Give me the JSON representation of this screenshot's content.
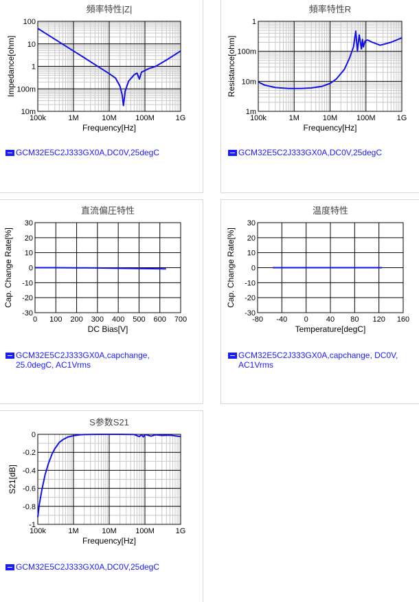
{
  "legend_color": "#1a1aff",
  "curve_color": "#1010e8",
  "chart_data": [
    {
      "id": "z",
      "type": "line",
      "title": "頻率特性|Z|",
      "xlabel": "Frequency[Hz]",
      "ylabel": "Impedance[ohm]",
      "xscale": "log",
      "yscale": "log",
      "xlim": [
        100000,
        1000000000
      ],
      "ylim": [
        0.01,
        100
      ],
      "xticks": [
        {
          "v": 100000,
          "label": "100k"
        },
        {
          "v": 1000000,
          "label": "1M"
        },
        {
          "v": 10000000,
          "label": "10M"
        },
        {
          "v": 100000000,
          "label": "100M"
        },
        {
          "v": 1000000000,
          "label": "1G"
        }
      ],
      "yticks": [
        {
          "v": 0.01,
          "label": "10m"
        },
        {
          "v": 0.1,
          "label": "100m"
        },
        {
          "v": 1,
          "label": "1"
        },
        {
          "v": 10,
          "label": "10"
        },
        {
          "v": 100,
          "label": "100"
        }
      ],
      "series": [
        {
          "x": [
            100000,
            200000,
            500000,
            1000000,
            2000000,
            5000000,
            10000000,
            15000000,
            20000000,
            23000000,
            25000000,
            28000000,
            35000000,
            50000000,
            60000000,
            70000000,
            80000000,
            100000000,
            130000000,
            200000000,
            400000000,
            1000000000
          ],
          "y": [
            48,
            24,
            9.6,
            4.8,
            2.4,
            0.95,
            0.47,
            0.3,
            0.13,
            0.055,
            0.018,
            0.08,
            0.22,
            0.42,
            0.5,
            0.27,
            0.55,
            0.65,
            0.8,
            1.0,
            1.9,
            4.8
          ]
        }
      ],
      "legend": "GCM32E5C2J333GX0A,DC0V,25degC"
    },
    {
      "id": "r",
      "type": "line",
      "title": "頻率特性R",
      "xlabel": "Frequency[Hz]",
      "ylabel": "Resistance[ohm]",
      "xscale": "log",
      "yscale": "log",
      "xlim": [
        100000,
        1000000000
      ],
      "ylim": [
        0.001,
        1
      ],
      "xticks": [
        {
          "v": 100000,
          "label": "100k"
        },
        {
          "v": 1000000,
          "label": "1M"
        },
        {
          "v": 10000000,
          "label": "10M"
        },
        {
          "v": 100000000,
          "label": "100M"
        },
        {
          "v": 1000000000,
          "label": "1G"
        }
      ],
      "yticks": [
        {
          "v": 0.001,
          "label": "1m"
        },
        {
          "v": 0.01,
          "label": "10m"
        },
        {
          "v": 0.1,
          "label": "100m"
        },
        {
          "v": 1,
          "label": "1"
        }
      ],
      "series": [
        {
          "x": [
            100000,
            150000,
            300000,
            700000,
            1500000,
            3000000,
            6000000,
            10000000,
            15000000,
            25000000,
            35000000,
            45000000,
            52000000,
            58000000,
            65000000,
            75000000,
            80000000,
            85000000,
            95000000,
            110000000,
            150000000,
            250000000,
            500000000,
            1000000000
          ],
          "y": [
            0.0095,
            0.0075,
            0.0062,
            0.0058,
            0.0058,
            0.006,
            0.0068,
            0.0085,
            0.012,
            0.025,
            0.06,
            0.14,
            0.47,
            0.1,
            0.35,
            0.12,
            0.25,
            0.14,
            0.22,
            0.24,
            0.2,
            0.16,
            0.2,
            0.28
          ]
        }
      ],
      "legend": "GCM32E5C2J333GX0A,DC0V,25degC"
    },
    {
      "id": "dc",
      "type": "line",
      "title": "直流偏圧特性",
      "xlabel": "DC Bias[V]",
      "ylabel": "Cap. Change Rate[%]",
      "xscale": "linear",
      "yscale": "linear",
      "xlim": [
        0,
        700
      ],
      "ylim": [
        -30,
        30
      ],
      "xticks": [
        {
          "v": 0,
          "label": "0"
        },
        {
          "v": 100,
          "label": "100"
        },
        {
          "v": 200,
          "label": "200"
        },
        {
          "v": 300,
          "label": "300"
        },
        {
          "v": 400,
          "label": "400"
        },
        {
          "v": 500,
          "label": "500"
        },
        {
          "v": 600,
          "label": "600"
        },
        {
          "v": 700,
          "label": "700"
        }
      ],
      "yticks": [
        {
          "v": -30,
          "label": "-30"
        },
        {
          "v": -20,
          "label": "-20"
        },
        {
          "v": -10,
          "label": "-10"
        },
        {
          "v": 0,
          "label": "0"
        },
        {
          "v": 10,
          "label": "10"
        },
        {
          "v": 20,
          "label": "20"
        },
        {
          "v": 30,
          "label": "30"
        }
      ],
      "series": [
        {
          "x": [
            0,
            100,
            200,
            300,
            400,
            500,
            630
          ],
          "y": [
            0,
            0,
            -0.1,
            -0.2,
            -0.4,
            -0.6,
            -0.8
          ]
        }
      ],
      "legend": "GCM32E5C2J333GX0A,capchange,\n25.0degC, AC1Vrms"
    },
    {
      "id": "temp",
      "type": "line",
      "title": "温度特性",
      "xlabel": "Temperature[degC]",
      "ylabel": "Cap. Change Rate[%]",
      "xscale": "linear",
      "yscale": "linear",
      "xlim": [
        -80,
        160
      ],
      "ylim": [
        -30,
        30
      ],
      "xticks": [
        {
          "v": -80,
          "label": "-80"
        },
        {
          "v": -40,
          "label": "-40"
        },
        {
          "v": 0,
          "label": "0"
        },
        {
          "v": 40,
          "label": "40"
        },
        {
          "v": 80,
          "label": "80"
        },
        {
          "v": 120,
          "label": "120"
        },
        {
          "v": 160,
          "label": "160"
        }
      ],
      "yticks": [
        {
          "v": -30,
          "label": "-30"
        },
        {
          "v": -20,
          "label": "-20"
        },
        {
          "v": -10,
          "label": "-10"
        },
        {
          "v": 0,
          "label": "0"
        },
        {
          "v": 10,
          "label": "10"
        },
        {
          "v": 20,
          "label": "20"
        },
        {
          "v": 30,
          "label": "30"
        }
      ],
      "series": [
        {
          "x": [
            -55,
            -25,
            25,
            85,
            125
          ],
          "y": [
            0,
            0,
            0,
            0,
            0
          ]
        }
      ],
      "legend": "GCM32E5C2J333GX0A,capchange, DC0V,\nAC1Vrms"
    },
    {
      "id": "s21",
      "type": "line",
      "title": "S参数S21",
      "xlabel": "Frequency[Hz]",
      "ylabel": "S21[dB]",
      "xscale": "log",
      "yscale": "linear",
      "xlim": [
        100000,
        1000000000
      ],
      "ylim": [
        -1,
        0
      ],
      "xticks": [
        {
          "v": 100000,
          "label": "100k"
        },
        {
          "v": 1000000,
          "label": "1M"
        },
        {
          "v": 10000000,
          "label": "10M"
        },
        {
          "v": 100000000,
          "label": "100M"
        },
        {
          "v": 1000000000,
          "label": "1G"
        }
      ],
      "yticks": [
        {
          "v": -1,
          "label": "-1"
        },
        {
          "v": -0.8,
          "label": "-0.8"
        },
        {
          "v": -0.6,
          "label": "-0.6"
        },
        {
          "v": -0.4,
          "label": "-0.4"
        },
        {
          "v": -0.2,
          "label": "-0.2"
        },
        {
          "v": 0,
          "label": "0"
        }
      ],
      "series": [
        {
          "x": [
            100000,
            110000,
            130000,
            160000,
            200000,
            250000,
            300000,
            400000,
            500000,
            700000,
            1000000,
            1500000,
            2000000,
            5000000,
            10000000,
            20000000,
            50000000,
            70000000,
            80000000,
            90000000,
            100000000,
            120000000,
            150000000,
            200000000,
            300000000,
            500000000,
            1000000000
          ],
          "y": [
            -0.92,
            -0.78,
            -0.62,
            -0.45,
            -0.32,
            -0.22,
            -0.16,
            -0.09,
            -0.06,
            -0.03,
            -0.015,
            -0.005,
            -0.002,
            0,
            0,
            0,
            -0.002,
            -0.025,
            -0.004,
            -0.028,
            -0.003,
            -0.01,
            -0.02,
            -0.005,
            -0.012,
            -0.01,
            -0.025
          ]
        }
      ],
      "legend": "GCM32E5C2J333GX0A,DC0V,25degC"
    }
  ]
}
